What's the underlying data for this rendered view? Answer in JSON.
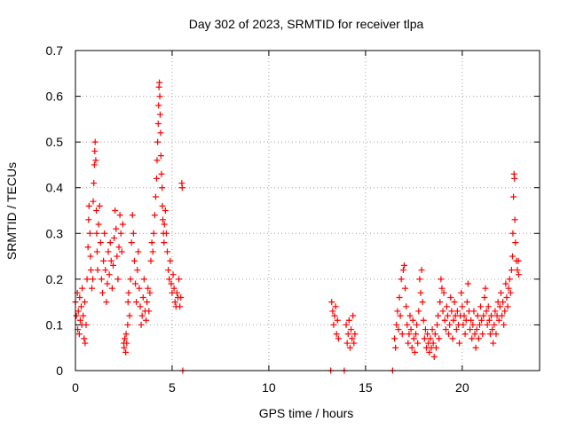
{
  "chart_data": {
    "type": "scatter",
    "title": "Day 302 of 2023, SRMTID for receiver tlpa",
    "xlabel": "GPS time / hours",
    "ylabel": "SRMTID / TECUs",
    "xlim": [
      0,
      24
    ],
    "ylim": [
      0,
      0.7
    ],
    "xticks": [
      0,
      5,
      10,
      15,
      20
    ],
    "yticks": [
      0,
      0.1,
      0.2,
      0.3,
      0.4,
      0.5,
      0.6,
      0.7
    ],
    "xtick_labels": [
      "0",
      "5",
      "10",
      "15",
      "20"
    ],
    "ytick_labels": [
      "0",
      "0.1",
      "0.2",
      "0.3",
      "0.4",
      "0.5",
      "0.6",
      "0.7"
    ],
    "grid": true,
    "marker": "+",
    "color": "#ff0000",
    "series": [
      {
        "name": "SRMTID",
        "points": [
          [
            0.0,
            0.15
          ],
          [
            0.05,
            0.12
          ],
          [
            0.1,
            0.17
          ],
          [
            0.12,
            0.09
          ],
          [
            0.15,
            0.13
          ],
          [
            0.2,
            0.08
          ],
          [
            0.22,
            0.16
          ],
          [
            0.25,
            0.11
          ],
          [
            0.3,
            0.14
          ],
          [
            0.33,
            0.1
          ],
          [
            0.35,
            0.18
          ],
          [
            0.4,
            0.12
          ],
          [
            0.45,
            0.07
          ],
          [
            0.48,
            0.15
          ],
          [
            0.5,
            0.06
          ],
          [
            0.55,
            0.1
          ],
          [
            0.6,
            0.2
          ],
          [
            0.65,
            0.27
          ],
          [
            0.68,
            0.33
          ],
          [
            0.7,
            0.36
          ],
          [
            0.75,
            0.3
          ],
          [
            0.78,
            0.25
          ],
          [
            0.8,
            0.22
          ],
          [
            0.85,
            0.18
          ],
          [
            0.9,
            0.2
          ],
          [
            0.92,
            0.37
          ],
          [
            0.95,
            0.41
          ],
          [
            0.98,
            0.45
          ],
          [
            1.0,
            0.48
          ],
          [
            1.02,
            0.5
          ],
          [
            1.05,
            0.46
          ],
          [
            1.08,
            0.35
          ],
          [
            1.1,
            0.3
          ],
          [
            1.12,
            0.26
          ],
          [
            1.15,
            0.22
          ],
          [
            1.2,
            0.32
          ],
          [
            1.25,
            0.36
          ],
          [
            1.3,
            0.28
          ],
          [
            1.35,
            0.2
          ],
          [
            1.4,
            0.17
          ],
          [
            1.45,
            0.24
          ],
          [
            1.5,
            0.3
          ],
          [
            1.55,
            0.22
          ],
          [
            1.6,
            0.15
          ],
          [
            1.65,
            0.19
          ],
          [
            1.7,
            0.26
          ],
          [
            1.75,
            0.21
          ],
          [
            1.8,
            0.28
          ],
          [
            1.85,
            0.24
          ],
          [
            1.9,
            0.18
          ],
          [
            1.95,
            0.23
          ],
          [
            2.0,
            0.29
          ],
          [
            2.05,
            0.35
          ],
          [
            2.1,
            0.31
          ],
          [
            2.15,
            0.25
          ],
          [
            2.2,
            0.2
          ],
          [
            2.25,
            0.27
          ],
          [
            2.3,
            0.34
          ],
          [
            2.35,
            0.3
          ],
          [
            2.4,
            0.26
          ],
          [
            2.45,
            0.32
          ],
          [
            2.5,
            0.06
          ],
          [
            2.52,
            0.05
          ],
          [
            2.55,
            0.07
          ],
          [
            2.6,
            0.04
          ],
          [
            2.62,
            0.08
          ],
          [
            2.65,
            0.06
          ],
          [
            2.7,
            0.1
          ],
          [
            2.72,
            0.15
          ],
          [
            2.75,
            0.17
          ],
          [
            2.8,
            0.12
          ],
          [
            2.85,
            0.2
          ],
          [
            2.9,
            0.28
          ],
          [
            2.95,
            0.34
          ],
          [
            3.0,
            0.3
          ],
          [
            3.05,
            0.24
          ],
          [
            3.1,
            0.19
          ],
          [
            3.15,
            0.15
          ],
          [
            3.2,
            0.22
          ],
          [
            3.25,
            0.26
          ],
          [
            3.3,
            0.18
          ],
          [
            3.35,
            0.14
          ],
          [
            3.4,
            0.1
          ],
          [
            3.45,
            0.12
          ],
          [
            3.5,
            0.16
          ],
          [
            3.55,
            0.2
          ],
          [
            3.6,
            0.13
          ],
          [
            3.65,
            0.11
          ],
          [
            3.7,
            0.15
          ],
          [
            3.75,
            0.18
          ],
          [
            3.8,
            0.13
          ],
          [
            3.85,
            0.17
          ],
          [
            3.9,
            0.24
          ],
          [
            3.95,
            0.28
          ],
          [
            4.0,
            0.26
          ],
          [
            4.05,
            0.3
          ],
          [
            4.1,
            0.34
          ],
          [
            4.15,
            0.38
          ],
          [
            4.2,
            0.42
          ],
          [
            4.22,
            0.46
          ],
          [
            4.25,
            0.5
          ],
          [
            4.28,
            0.54
          ],
          [
            4.3,
            0.58
          ],
          [
            4.32,
            0.62
          ],
          [
            4.34,
            0.63
          ],
          [
            4.36,
            0.6
          ],
          [
            4.38,
            0.56
          ],
          [
            4.4,
            0.52
          ],
          [
            4.42,
            0.47
          ],
          [
            4.45,
            0.43
          ],
          [
            4.48,
            0.4
          ],
          [
            4.5,
            0.36
          ],
          [
            4.52,
            0.33
          ],
          [
            4.55,
            0.3
          ],
          [
            4.58,
            0.28
          ],
          [
            4.6,
            0.32
          ],
          [
            4.65,
            0.35
          ],
          [
            4.7,
            0.3
          ],
          [
            4.75,
            0.26
          ],
          [
            4.8,
            0.22
          ],
          [
            4.85,
            0.2
          ],
          [
            4.9,
            0.24
          ],
          [
            4.95,
            0.19
          ],
          [
            5.0,
            0.17
          ],
          [
            5.05,
            0.21
          ],
          [
            5.1,
            0.18
          ],
          [
            5.15,
            0.15
          ],
          [
            5.2,
            0.14
          ],
          [
            5.25,
            0.17
          ],
          [
            5.3,
            0.16
          ],
          [
            5.35,
            0.2
          ],
          [
            5.4,
            0.14
          ],
          [
            5.45,
            0.16
          ],
          [
            5.5,
            0.41
          ],
          [
            5.52,
            0.4
          ],
          [
            5.55,
            0.0
          ],
          [
            13.2,
            0.0
          ],
          [
            13.25,
            0.15
          ],
          [
            13.3,
            0.13
          ],
          [
            13.35,
            0.1
          ],
          [
            13.4,
            0.12
          ],
          [
            13.45,
            0.14
          ],
          [
            13.5,
            0.08
          ],
          [
            13.55,
            0.11
          ],
          [
            13.6,
            0.07
          ],
          [
            13.9,
            0.0
          ],
          [
            14.0,
            0.1
          ],
          [
            14.05,
            0.06
          ],
          [
            14.1,
            0.08
          ],
          [
            14.15,
            0.11
          ],
          [
            14.2,
            0.05
          ],
          [
            14.25,
            0.09
          ],
          [
            14.3,
            0.07
          ],
          [
            14.35,
            0.12
          ],
          [
            14.4,
            0.06
          ],
          [
            14.45,
            0.08
          ],
          [
            16.4,
            0.0
          ],
          [
            16.5,
            0.07
          ],
          [
            16.55,
            0.05
          ],
          [
            16.6,
            0.1
          ],
          [
            16.65,
            0.13
          ],
          [
            16.7,
            0.09
          ],
          [
            16.75,
            0.16
          ],
          [
            16.8,
            0.12
          ],
          [
            16.85,
            0.2
          ],
          [
            16.9,
            0.08
          ],
          [
            16.95,
            0.22
          ],
          [
            17.0,
            0.23
          ],
          [
            17.05,
            0.18
          ],
          [
            17.1,
            0.14
          ],
          [
            17.15,
            0.1
          ],
          [
            17.2,
            0.06
          ],
          [
            17.25,
            0.08
          ],
          [
            17.3,
            0.12
          ],
          [
            17.35,
            0.09
          ],
          [
            17.4,
            0.05
          ],
          [
            17.45,
            0.11
          ],
          [
            17.5,
            0.07
          ],
          [
            17.55,
            0.04
          ],
          [
            17.6,
            0.08
          ],
          [
            17.65,
            0.1
          ],
          [
            17.7,
            0.06
          ],
          [
            17.75,
            0.13
          ],
          [
            17.8,
            0.2
          ],
          [
            17.85,
            0.17
          ],
          [
            17.9,
            0.22
          ],
          [
            17.95,
            0.15
          ],
          [
            18.0,
            0.11
          ],
          [
            18.05,
            0.07
          ],
          [
            18.1,
            0.09
          ],
          [
            18.15,
            0.05
          ],
          [
            18.2,
            0.08
          ],
          [
            18.25,
            0.06
          ],
          [
            18.3,
            0.04
          ],
          [
            18.35,
            0.07
          ],
          [
            18.4,
            0.05
          ],
          [
            18.45,
            0.09
          ],
          [
            18.5,
            0.06
          ],
          [
            18.55,
            0.03
          ],
          [
            18.6,
            0.08
          ],
          [
            18.65,
            0.05
          ],
          [
            18.7,
            0.1
          ],
          [
            18.75,
            0.12
          ],
          [
            18.8,
            0.07
          ],
          [
            18.85,
            0.15
          ],
          [
            18.9,
            0.2
          ],
          [
            18.95,
            0.18
          ],
          [
            19.0,
            0.13
          ],
          [
            19.05,
            0.17
          ],
          [
            19.1,
            0.11
          ],
          [
            19.15,
            0.09
          ],
          [
            19.2,
            0.14
          ],
          [
            19.25,
            0.12
          ],
          [
            19.3,
            0.08
          ],
          [
            19.35,
            0.1
          ],
          [
            19.4,
            0.16
          ],
          [
            19.45,
            0.13
          ],
          [
            19.5,
            0.07
          ],
          [
            19.55,
            0.11
          ],
          [
            19.6,
            0.15
          ],
          [
            19.65,
            0.12
          ],
          [
            19.7,
            0.09
          ],
          [
            19.75,
            0.13
          ],
          [
            19.8,
            0.1
          ],
          [
            19.85,
            0.06
          ],
          [
            19.9,
            0.12
          ],
          [
            19.95,
            0.17
          ],
          [
            20.0,
            0.14
          ],
          [
            20.05,
            0.1
          ],
          [
            20.1,
            0.12
          ],
          [
            20.15,
            0.08
          ],
          [
            20.2,
            0.11
          ],
          [
            20.25,
            0.15
          ],
          [
            20.3,
            0.19
          ],
          [
            20.35,
            0.13
          ],
          [
            20.4,
            0.09
          ],
          [
            20.45,
            0.11
          ],
          [
            20.5,
            0.07
          ],
          [
            20.55,
            0.1
          ],
          [
            20.6,
            0.13
          ],
          [
            20.65,
            0.08
          ],
          [
            20.7,
            0.05
          ],
          [
            20.75,
            0.09
          ],
          [
            20.8,
            0.12
          ],
          [
            20.85,
            0.07
          ],
          [
            20.9,
            0.1
          ],
          [
            20.95,
            0.14
          ],
          [
            21.0,
            0.11
          ],
          [
            21.05,
            0.08
          ],
          [
            21.1,
            0.12
          ],
          [
            21.15,
            0.16
          ],
          [
            21.2,
            0.18
          ],
          [
            21.25,
            0.13
          ],
          [
            21.3,
            0.1
          ],
          [
            21.35,
            0.14
          ],
          [
            21.4,
            0.11
          ],
          [
            21.45,
            0.08
          ],
          [
            21.5,
            0.12
          ],
          [
            21.55,
            0.09
          ],
          [
            21.6,
            0.06
          ],
          [
            21.65,
            0.1
          ],
          [
            21.7,
            0.13
          ],
          [
            21.75,
            0.08
          ],
          [
            21.8,
            0.12
          ],
          [
            21.85,
            0.15
          ],
          [
            21.9,
            0.11
          ],
          [
            21.95,
            0.14
          ],
          [
            22.0,
            0.17
          ],
          [
            22.05,
            0.12
          ],
          [
            22.1,
            0.15
          ],
          [
            22.15,
            0.1
          ],
          [
            22.2,
            0.13
          ],
          [
            22.25,
            0.19
          ],
          [
            22.3,
            0.16
          ],
          [
            22.35,
            0.14
          ],
          [
            22.4,
            0.18
          ],
          [
            22.45,
            0.2
          ],
          [
            22.5,
            0.17
          ],
          [
            22.55,
            0.22
          ],
          [
            22.6,
            0.25
          ],
          [
            22.62,
            0.3
          ],
          [
            22.65,
            0.38
          ],
          [
            22.68,
            0.43
          ],
          [
            22.7,
            0.42
          ],
          [
            22.72,
            0.33
          ],
          [
            22.75,
            0.28
          ],
          [
            22.8,
            0.24
          ],
          [
            22.85,
            0.22
          ],
          [
            22.9,
            0.24
          ],
          [
            22.92,
            0.21
          ]
        ]
      }
    ]
  }
}
